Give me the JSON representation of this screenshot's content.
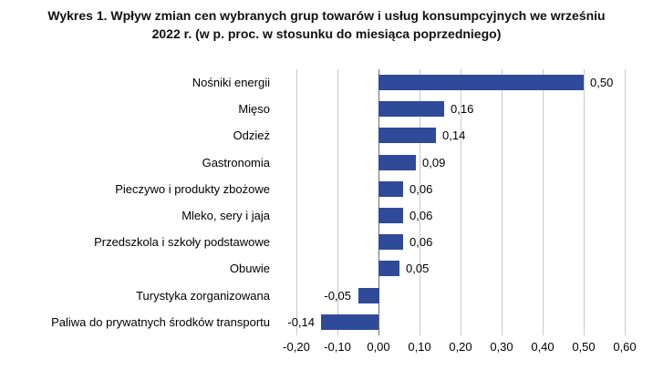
{
  "title": {
    "line1": "Wykres 1. Wpływ zmian cen wybranych grup towarów i usług konsumpcyjnych we wrześniu",
    "line2": "2022 r. (w p. proc. w stosunku do miesiąca poprzedniego)"
  },
  "chart_data": {
    "type": "bar",
    "orientation": "horizontal",
    "title": "Wykres 1. Wpływ zmian cen wybranych grup towarów i usług konsumpcyjnych we wrześniu 2022 r. (w p. proc. w stosunku do miesiąca poprzedniego)",
    "categories": [
      "Nośniki energii",
      "Mięso",
      "Odzież",
      "Gastronomia",
      "Pieczywo i produkty zbożowe",
      "Mleko, sery i jaja",
      "Przedszkola i szkoły podstawowe",
      "Obuwie",
      "Turystyka zorganizowana",
      "Paliwa do prywatnych środków transportu"
    ],
    "values": [
      0.5,
      0.16,
      0.14,
      0.09,
      0.06,
      0.06,
      0.06,
      0.05,
      -0.05,
      -0.14
    ],
    "value_labels": [
      "0,50",
      "0,16",
      "0,14",
      "0,09",
      "0,06",
      "0,06",
      "0,06",
      "0,05",
      "-0,05",
      "-0,14"
    ],
    "xlabel": "",
    "ylabel": "",
    "xlim": [
      -0.2,
      0.6
    ],
    "x_ticks": [
      -0.2,
      -0.1,
      0.0,
      0.1,
      0.2,
      0.3,
      0.4,
      0.5,
      0.6
    ],
    "x_tick_labels": [
      "-0,20",
      "-0,10",
      "0,00",
      "0,10",
      "0,20",
      "0,30",
      "0,40",
      "0,50",
      "0,60"
    ],
    "grid": "vertical-only",
    "legend": "none",
    "bar_color": "#2F4A99",
    "gridline_color": "#C9C9C9",
    "zero_line_color": "#6E6E6E"
  }
}
